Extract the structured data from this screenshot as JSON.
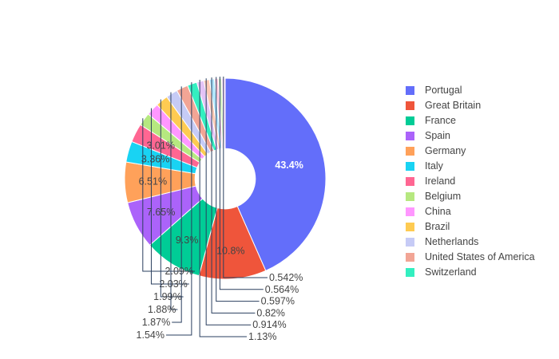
{
  "chart_data": {
    "type": "pie",
    "hole": 0.3,
    "legend_position": "right",
    "slices": [
      {
        "label": "Portugal",
        "value": 43.4,
        "text": "43.4%",
        "color": "#636efa"
      },
      {
        "label": "Great Britain",
        "value": 10.8,
        "text": "10.8%",
        "color": "#ef553b"
      },
      {
        "label": "France",
        "value": 9.3,
        "text": "9.3%",
        "color": "#00cc96"
      },
      {
        "label": "Spain",
        "value": 7.65,
        "text": "7.65%",
        "color": "#ab63fa"
      },
      {
        "label": "Germany",
        "value": 6.51,
        "text": "6.51%",
        "color": "#ffa15a"
      },
      {
        "label": "Italy",
        "value": 3.36,
        "text": "3.36%",
        "color": "#19d3f3"
      },
      {
        "label": "Ireland",
        "value": 3.01,
        "text": "3.01%",
        "color": "#ff6692"
      },
      {
        "label": "Belgium",
        "value": 2.09,
        "text": "2.09%",
        "color": "#b6e880"
      },
      {
        "label": "China",
        "value": 2.03,
        "text": "2.03%",
        "color": "#ff97ff"
      },
      {
        "label": "Brazil",
        "value": 1.99,
        "text": "1.99%",
        "color": "#fecb52"
      },
      {
        "label": "Netherlands",
        "value": 1.88,
        "text": "1.88%",
        "color": "#c6cbf6"
      },
      {
        "label": "United States of America",
        "value": 1.87,
        "text": "1.87%",
        "color": "#f2a595"
      },
      {
        "label": "Switzerland",
        "value": 1.54,
        "text": "1.54%",
        "color": "#33efc0"
      },
      {
        "value": 1.13,
        "text": "1.13%",
        "color": "#e3c3f6"
      },
      {
        "value": 0.914,
        "text": "0.914%",
        "color": "#ffc8b3"
      },
      {
        "value": 0.82,
        "text": "0.82%",
        "color": "#b0e6ff"
      },
      {
        "value": 0.597,
        "text": "0.597%",
        "color": "#ffc8dc"
      },
      {
        "value": 0.564,
        "text": "0.564%",
        "color": "#d6f2c0"
      },
      {
        "value": 0.542,
        "text": "0.542%",
        "color": "#ffd9ff"
      }
    ]
  }
}
